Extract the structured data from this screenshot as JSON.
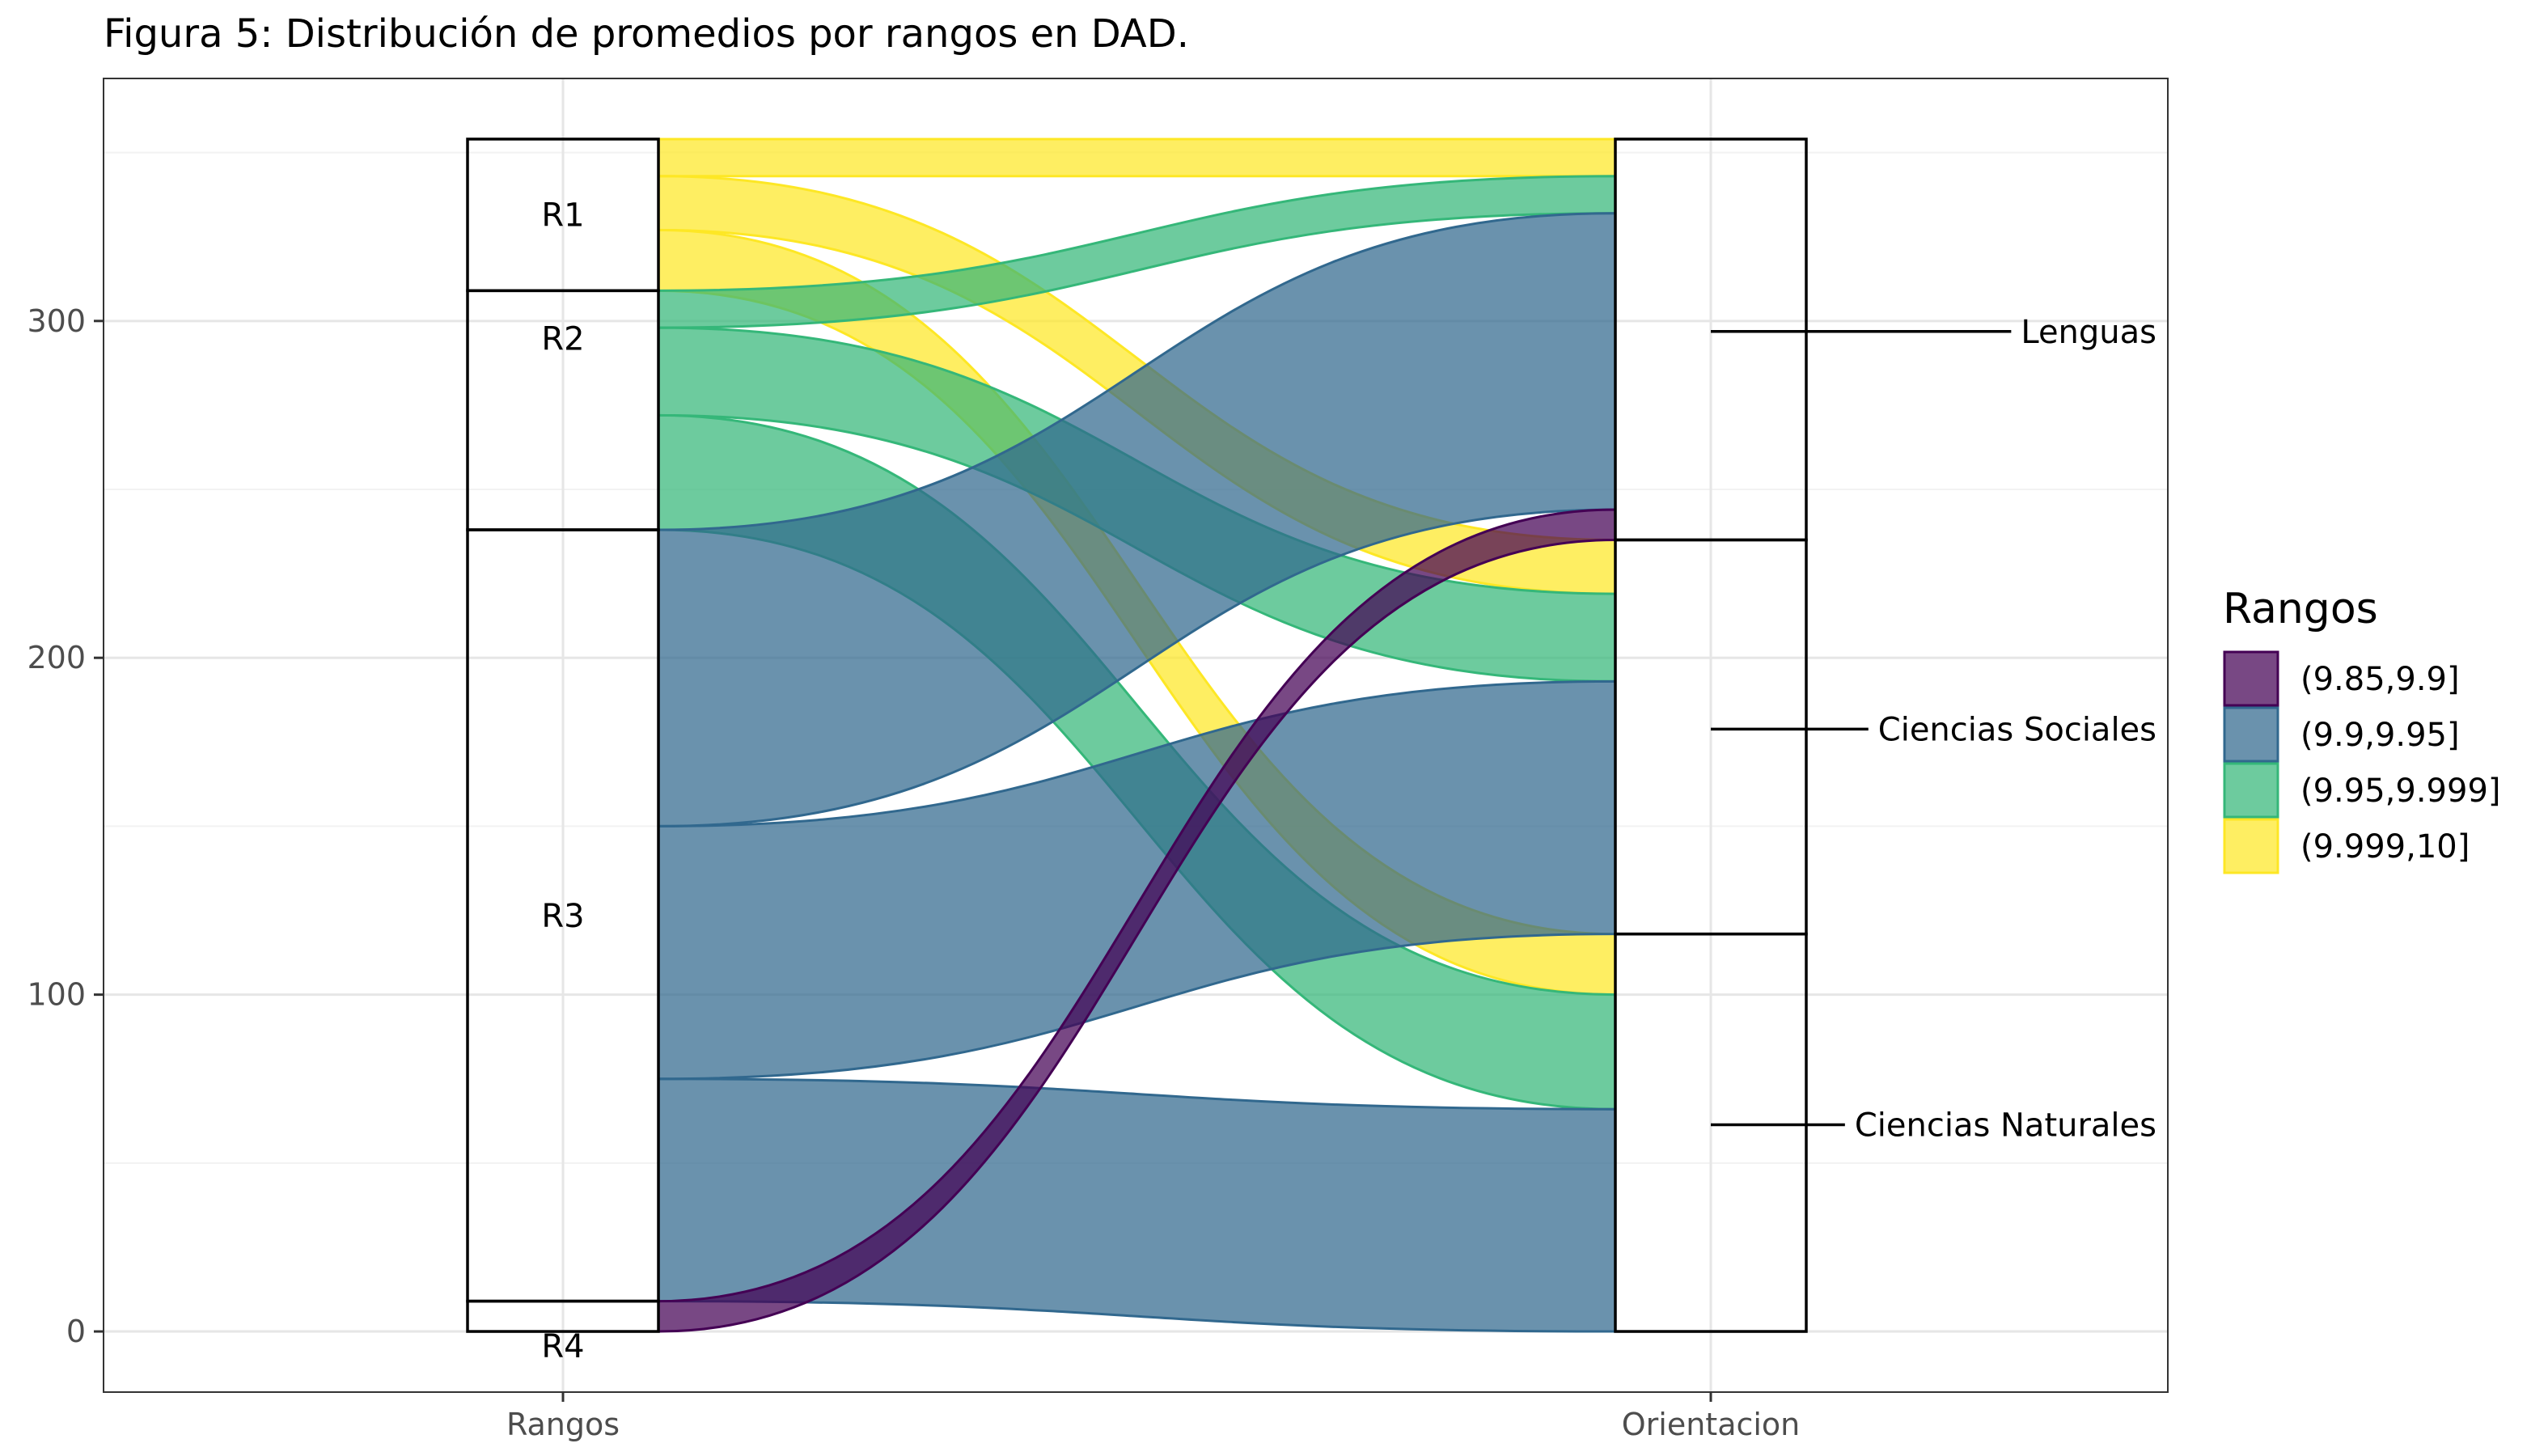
{
  "title": "Figura 5: Distribución de promedios por rangos en DAD.",
  "chart_data": {
    "type": "alluvial",
    "title": "Figura 5: Distribución de promedios por rangos en DAD.",
    "axes": [
      "Rangos",
      "Orientacion"
    ],
    "ylim": [
      -18,
      372
    ],
    "y_ticks": [
      0,
      100,
      200,
      300
    ],
    "grid": true,
    "legend": {
      "title": "Rangos",
      "position": "right",
      "entries": [
        {
          "label": "(9.85,9.9]",
          "color": "#440154"
        },
        {
          "label": "(9.9,9.95]",
          "color": "#31688E"
        },
        {
          "label": "(9.95,9.999]",
          "color": "#35B779"
        },
        {
          "label": "(9.999,10]",
          "color": "#FDE725"
        }
      ]
    },
    "strata": {
      "Rangos": [
        {
          "name": "R1",
          "value": 45
        },
        {
          "name": "R2",
          "value": 71
        },
        {
          "name": "R3",
          "value": 229
        },
        {
          "name": "R4",
          "value": 9
        }
      ],
      "Orientacion": [
        {
          "name": "Lenguas",
          "value": 119
        },
        {
          "name": "Ciencias Sociales",
          "value": 117
        },
        {
          "name": "Ciencias Naturales",
          "value": 118
        }
      ]
    },
    "flows": [
      {
        "from": "R1",
        "to": "Lenguas",
        "range": "(9.999,10]",
        "value": 11
      },
      {
        "from": "R1",
        "to": "Ciencias Sociales",
        "range": "(9.999,10]",
        "value": 16
      },
      {
        "from": "R1",
        "to": "Ciencias Naturales",
        "range": "(9.999,10]",
        "value": 18
      },
      {
        "from": "R2",
        "to": "Lenguas",
        "range": "(9.95,9.999]",
        "value": 11
      },
      {
        "from": "R2",
        "to": "Ciencias Sociales",
        "range": "(9.95,9.999]",
        "value": 26
      },
      {
        "from": "R2",
        "to": "Ciencias Naturales",
        "range": "(9.95,9.999]",
        "value": 34
      },
      {
        "from": "R3",
        "to": "Lenguas",
        "range": "(9.9,9.95]",
        "value": 88
      },
      {
        "from": "R3",
        "to": "Ciencias Sociales",
        "range": "(9.9,9.95]",
        "value": 75
      },
      {
        "from": "R3",
        "to": "Ciencias Naturales",
        "range": "(9.9,9.95]",
        "value": 66
      },
      {
        "from": "R4",
        "to": "Lenguas",
        "range": "(9.85,9.9]",
        "value": 9
      }
    ]
  }
}
